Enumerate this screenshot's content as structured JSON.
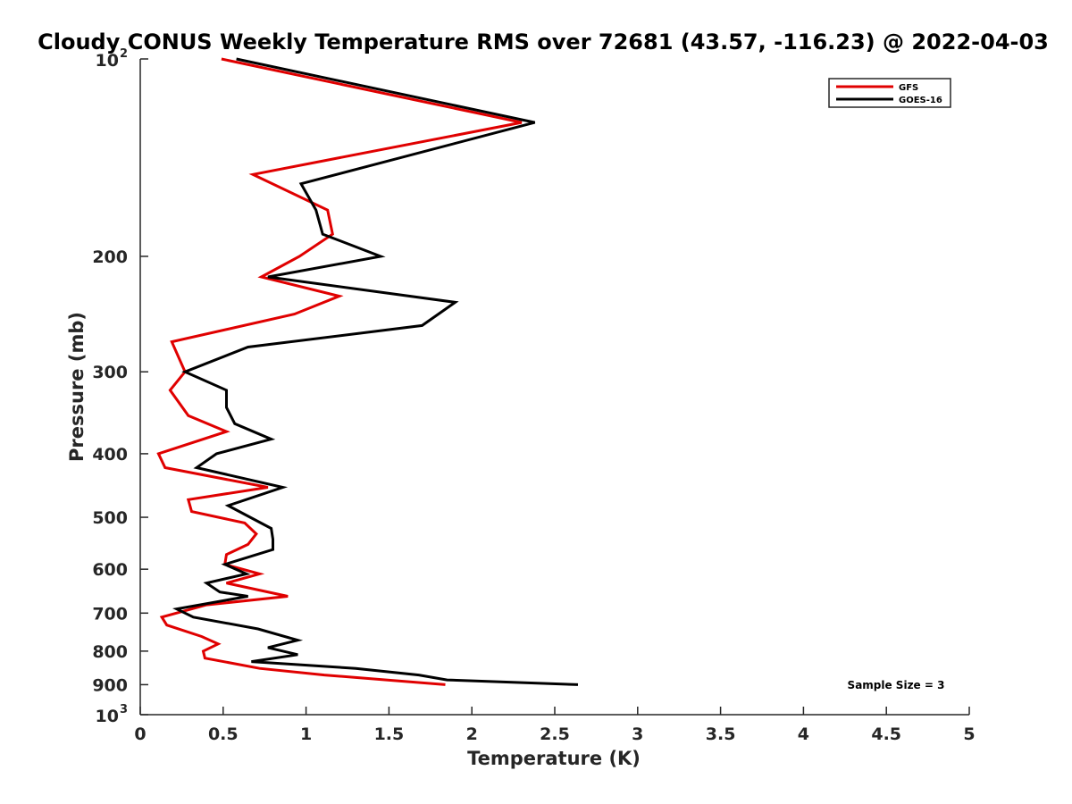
{
  "chart_data": {
    "type": "line",
    "title": "Cloudy CONUS Weekly Temperature RMS over 72681 (43.57, -116.23) @ 2022-04-03",
    "xlabel": "Temperature (K)",
    "ylabel": "Pressure (mb)",
    "xlim": [
      0,
      5
    ],
    "ylim": [
      100,
      1000
    ],
    "y_scale": "log",
    "y_reversed": true,
    "x_ticks": [
      "0",
      "0.5",
      "1",
      "1.5",
      "2",
      "2.5",
      "3",
      "3.5",
      "4",
      "4.5",
      "5"
    ],
    "y_ticks": [
      {
        "value": 100,
        "base": "10",
        "exp": "2"
      },
      {
        "value": 200,
        "label": "200"
      },
      {
        "value": 300,
        "label": "300"
      },
      {
        "value": 400,
        "label": "400"
      },
      {
        "value": 500,
        "label": "500"
      },
      {
        "value": 600,
        "label": "600"
      },
      {
        "value": 700,
        "label": "700"
      },
      {
        "value": 800,
        "label": "800"
      },
      {
        "value": 900,
        "label": "900"
      },
      {
        "value": 1000,
        "base": "10",
        "exp": "3"
      }
    ],
    "grid": false,
    "legend_position": "top-right",
    "annotation": "Sample Size = 3",
    "series": [
      {
        "name": "GFS",
        "color": "#e00000",
        "points": [
          [
            0.49,
            100
          ],
          [
            2.3,
            125
          ],
          [
            0.68,
            150
          ],
          [
            1.13,
            170
          ],
          [
            1.16,
            185
          ],
          [
            0.96,
            200
          ],
          [
            0.73,
            215
          ],
          [
            1.2,
            230
          ],
          [
            0.93,
            245
          ],
          [
            0.19,
            270
          ],
          [
            0.27,
            300
          ],
          [
            0.18,
            320
          ],
          [
            0.29,
            350
          ],
          [
            0.52,
            370
          ],
          [
            0.11,
            400
          ],
          [
            0.15,
            420
          ],
          [
            0.77,
            450
          ],
          [
            0.29,
            470
          ],
          [
            0.31,
            490
          ],
          [
            0.63,
            510
          ],
          [
            0.7,
            530
          ],
          [
            0.65,
            550
          ],
          [
            0.52,
            570
          ],
          [
            0.51,
            590
          ],
          [
            0.72,
            610
          ],
          [
            0.52,
            630
          ],
          [
            0.89,
            660
          ],
          [
            0.4,
            680
          ],
          [
            0.13,
            710
          ],
          [
            0.16,
            730
          ],
          [
            0.37,
            760
          ],
          [
            0.47,
            780
          ],
          [
            0.38,
            800
          ],
          [
            0.39,
            820
          ],
          [
            0.72,
            850
          ],
          [
            1.11,
            870
          ],
          [
            1.84,
            900
          ]
        ]
      },
      {
        "name": "GOES-16",
        "color": "#000000",
        "points": [
          [
            0.58,
            100
          ],
          [
            2.38,
            125
          ],
          [
            0.97,
            155
          ],
          [
            1.06,
            170
          ],
          [
            1.1,
            185
          ],
          [
            1.45,
            200
          ],
          [
            0.77,
            215
          ],
          [
            1.9,
            235
          ],
          [
            1.7,
            255
          ],
          [
            0.65,
            275
          ],
          [
            0.27,
            300
          ],
          [
            0.52,
            320
          ],
          [
            0.52,
            340
          ],
          [
            0.57,
            360
          ],
          [
            0.79,
            380
          ],
          [
            0.46,
            400
          ],
          [
            0.34,
            420
          ],
          [
            0.86,
            450
          ],
          [
            0.53,
            480
          ],
          [
            0.79,
            520
          ],
          [
            0.8,
            540
          ],
          [
            0.8,
            560
          ],
          [
            0.51,
            590
          ],
          [
            0.64,
            610
          ],
          [
            0.4,
            630
          ],
          [
            0.48,
            650
          ],
          [
            0.65,
            660
          ],
          [
            0.22,
            690
          ],
          [
            0.32,
            710
          ],
          [
            0.71,
            740
          ],
          [
            0.95,
            770
          ],
          [
            0.77,
            790
          ],
          [
            0.95,
            810
          ],
          [
            0.67,
            830
          ],
          [
            1.3,
            850
          ],
          [
            1.68,
            870
          ],
          [
            1.85,
            885
          ],
          [
            2.64,
            900
          ]
        ]
      }
    ]
  }
}
